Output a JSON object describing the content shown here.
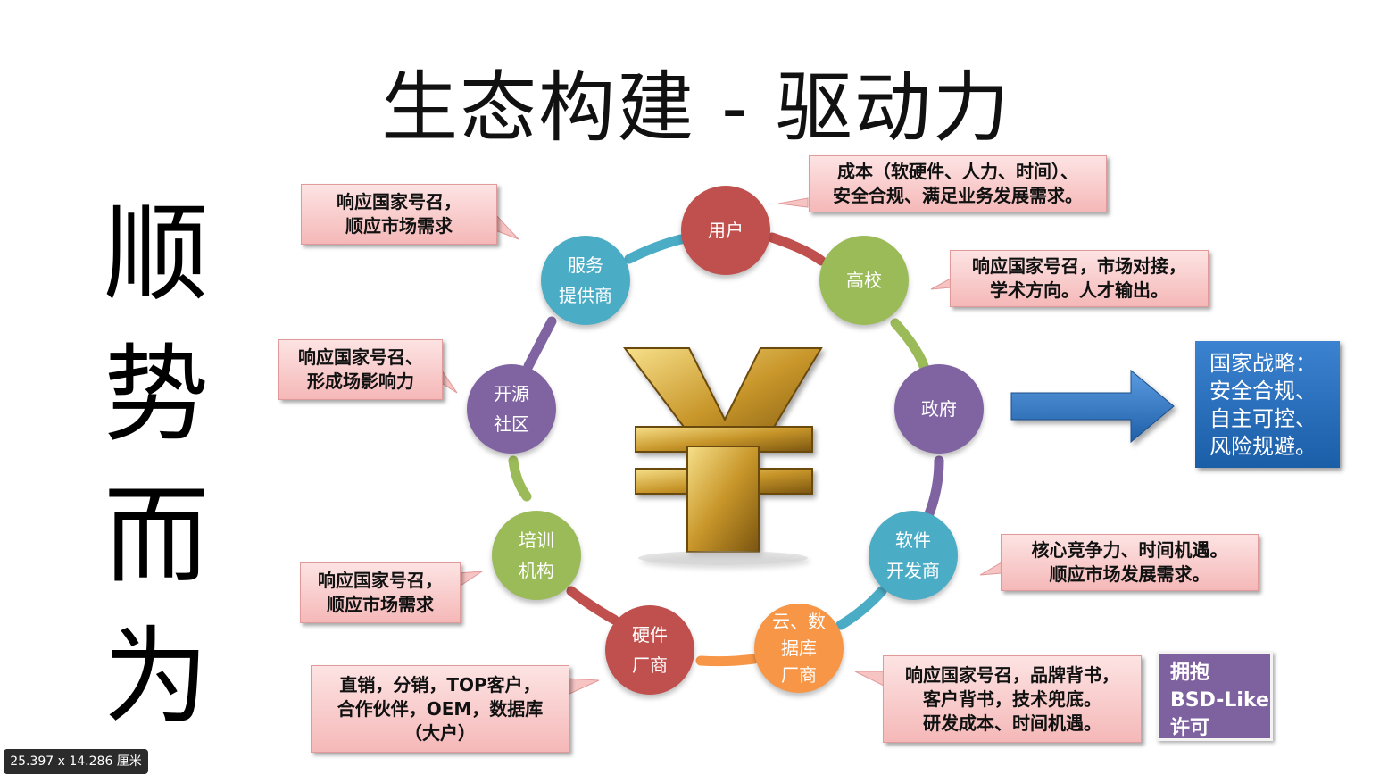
{
  "title": "生态构建 - 驱动力",
  "side_text": [
    "顺",
    "势",
    "而",
    "为"
  ],
  "center_icon": "yen-icon",
  "nodes": {
    "user": [
      "用户"
    ],
    "university": [
      "高校"
    ],
    "government": [
      "政府"
    ],
    "software_dev": [
      "软件",
      "开发商"
    ],
    "cloud_db": [
      "云、数",
      "据库",
      "厂商"
    ],
    "hardware": [
      "硬件",
      "厂商"
    ],
    "training": [
      "培训",
      "机构"
    ],
    "open_source": [
      "开源",
      "社区"
    ],
    "service": [
      "服务",
      "提供商"
    ]
  },
  "callouts": {
    "user": [
      "成本（软硬件、人力、时间）、",
      "安全合规、满足业务发展需求。"
    ],
    "university": [
      "响应国家号召，市场对接，",
      "学术方向。人才输出。"
    ],
    "software_dev": [
      "核心竞争力、时间机遇。",
      "顺应市场发展需求。"
    ],
    "cloud_db": [
      "响应国家号召，品牌背书，",
      "客户背书，技术兜底。",
      "研发成本、时间机遇。"
    ],
    "hardware": [
      "直销，分销，TOP客户，",
      "合作伙伴，OEM，数据库",
      "（大户）"
    ],
    "training": [
      "响应国家号召，",
      "顺应市场需求"
    ],
    "open_source": [
      "响应国家号召、",
      "形成场影响力"
    ],
    "service": [
      "响应国家号召，",
      "顺应市场需求"
    ]
  },
  "strategy": [
    "国家战略：",
    "安全合规、",
    "自主可控、",
    "风险规避。"
  ],
  "bsd": [
    "拥抱",
    "BSD-Like",
    "许可"
  ],
  "dims_label": "25.397 x 14.286 厘米",
  "colors": {
    "red": "#c0504d",
    "green": "#9bbb59",
    "purple": "#8064a2",
    "teal": "#4bacc6",
    "orange": "#f79646",
    "blue": "#1f5fa8"
  }
}
